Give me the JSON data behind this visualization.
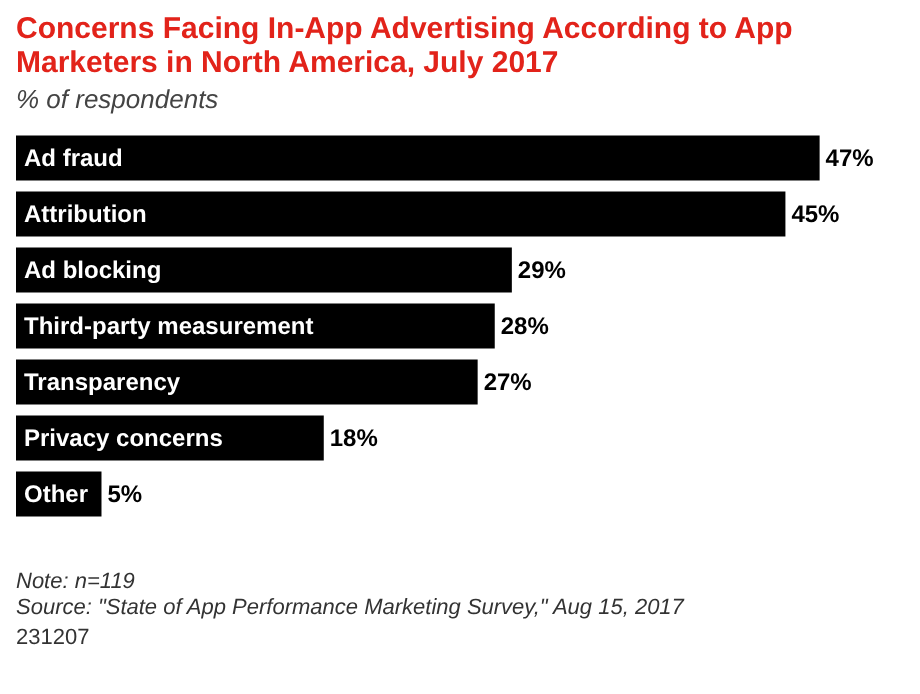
{
  "chart_data": {
    "type": "bar",
    "orientation": "horizontal",
    "title": "Concerns Facing In-App Advertising According to App Marketers in North America, July 2017",
    "subtitle": "% of respondents",
    "categories": [
      "Ad fraud",
      "Attribution",
      "Ad blocking",
      "Third-party measurement",
      "Transparency",
      "Privacy concerns",
      "Other"
    ],
    "values": [
      47,
      45,
      29,
      28,
      27,
      18,
      5
    ],
    "value_labels": [
      "47%",
      "45%",
      "29%",
      "28%",
      "27%",
      "18%",
      "5%"
    ],
    "color": "#000000",
    "annotations": [
      "Note: n=119",
      "Source: \"State of App Performance Marketing Survey,\" Aug 15, 2017",
      "231207"
    ]
  }
}
